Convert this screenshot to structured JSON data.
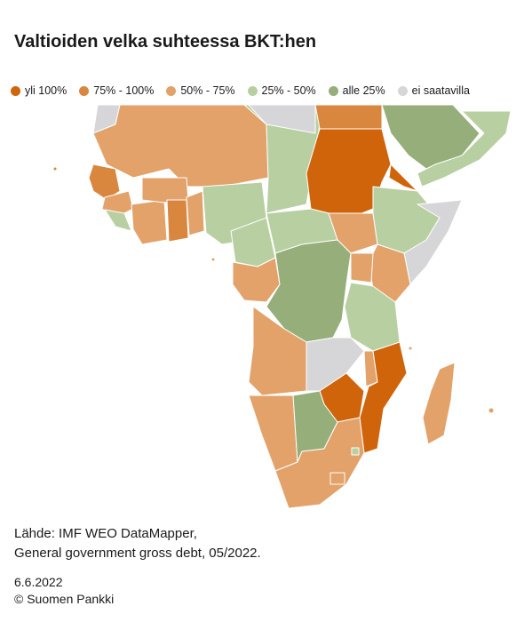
{
  "title": "Valtioiden velka suhteessa BKT:hen",
  "legend": [
    {
      "label": "yli 100%",
      "color": "#d0640a"
    },
    {
      "label": "75% - 100%",
      "color": "#d9873f"
    },
    {
      "label": "50% - 75%",
      "color": "#e2a26a"
    },
    {
      "label": "25% - 50%",
      "color": "#b8cfa2"
    },
    {
      "label": "alle 25%",
      "color": "#95ae7a"
    },
    {
      "label": "ei saatavilla",
      "color": "#d6d6d8"
    }
  ],
  "source_line1": "Lähde: IMF WEO DataMapper,",
  "source_line2": "General government gross debt, 05/2022.",
  "date": "6.6.2022",
  "copyright": "© Suomen Pankki"
}
